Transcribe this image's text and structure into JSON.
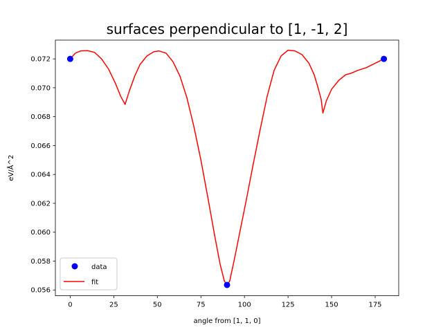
{
  "chart_data": {
    "type": "line",
    "title": "surfaces perpendicular to [1, -1, 2]",
    "xlabel": "angle from [1, 1, 0]",
    "ylabel": "eV/Å^2",
    "xlim": [
      -8.5,
      188.5
    ],
    "ylim": [
      0.0556,
      0.0733
    ],
    "xticks": [
      0,
      25,
      50,
      75,
      100,
      125,
      150,
      175
    ],
    "yticks": [
      0.056,
      0.058,
      0.06,
      0.062,
      0.064,
      0.066,
      0.068,
      0.07,
      0.072
    ],
    "ytick_labels": [
      "0.056",
      "0.058",
      "0.060",
      "0.062",
      "0.064",
      "0.066",
      "0.068",
      "0.070",
      "0.072"
    ],
    "grid": false,
    "legend": "lower-left",
    "series": [
      {
        "name": "data",
        "kind": "scatter",
        "color": "#0000ff",
        "x": [
          0,
          90,
          180
        ],
        "y": [
          0.072,
          0.05635,
          0.072
        ]
      },
      {
        "name": "fit",
        "kind": "line",
        "color": "#ff0000",
        "x": [
          0,
          3,
          6,
          10,
          14,
          18,
          22,
          26,
          29,
          31.5,
          34,
          37,
          40,
          44,
          48,
          51,
          55,
          59,
          63,
          67,
          71,
          75,
          79,
          83,
          86,
          88.5,
          90,
          91.5,
          94,
          97,
          101,
          105,
          109,
          113,
          117,
          121,
          125,
          129,
          133,
          137,
          140,
          142,
          144,
          145,
          147,
          150,
          154,
          158,
          161,
          165,
          170,
          175,
          180
        ],
        "y": [
          0.072,
          0.0724,
          0.07255,
          0.07257,
          0.07245,
          0.072,
          0.0713,
          0.0703,
          0.0694,
          0.06885,
          0.0698,
          0.0708,
          0.0716,
          0.0722,
          0.0725,
          0.07255,
          0.0724,
          0.0718,
          0.0708,
          0.0693,
          0.0673,
          0.065,
          0.0624,
          0.0597,
          0.0578,
          0.0566,
          0.0564,
          0.0566,
          0.058,
          0.0598,
          0.0622,
          0.0647,
          0.0671,
          0.0694,
          0.0712,
          0.0722,
          0.0726,
          0.07255,
          0.0723,
          0.0717,
          0.0709,
          0.0701,
          0.0692,
          0.06825,
          0.0691,
          0.0699,
          0.0705,
          0.0709,
          0.071,
          0.0712,
          0.0714,
          0.0717,
          0.072
        ]
      }
    ]
  }
}
